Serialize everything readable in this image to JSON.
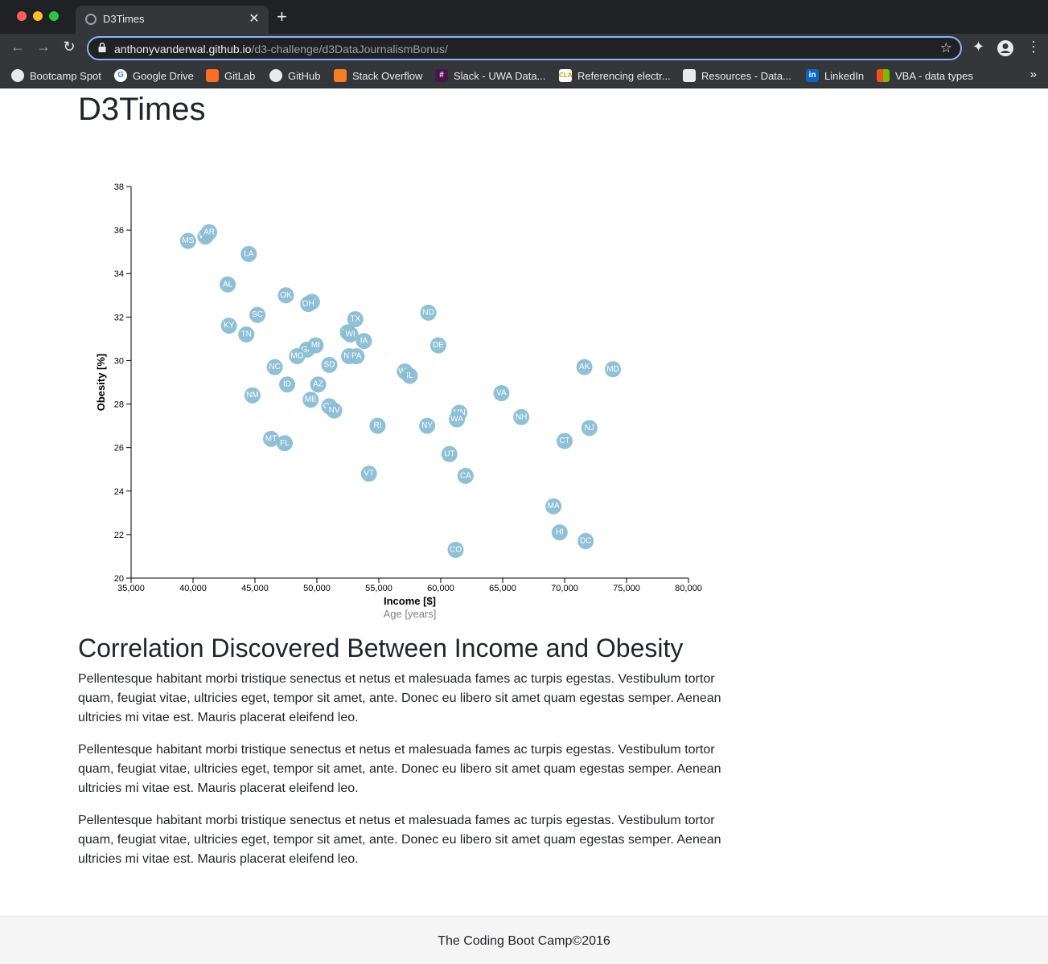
{
  "browser": {
    "tab_title": "D3Times",
    "url_host": "anthonyvanderwal.github.io",
    "url_path": "/d3-challenge/d3DataJournalismBonus/",
    "bookmarks": [
      {
        "label": "Bootcamp Spot",
        "icon": "globe-icon",
        "color": "#e8eaed"
      },
      {
        "label": "Google Drive",
        "icon": "google-icon",
        "color": "#4285f4"
      },
      {
        "label": "GitLab",
        "icon": "gitlab-icon",
        "color": "#fc6d26"
      },
      {
        "label": "GitHub",
        "icon": "github-icon",
        "color": "#e8eaed"
      },
      {
        "label": "Stack Overflow",
        "icon": "stackoverflow-icon",
        "color": "#f48024"
      },
      {
        "label": "Slack - UWA Data...",
        "icon": "slack-icon",
        "color": "#4a154b"
      },
      {
        "label": "Referencing electr...",
        "icon": "cla-icon",
        "color": "#f4b400"
      },
      {
        "label": "Resources - Data...",
        "icon": "book-icon",
        "color": "#e8eaed"
      },
      {
        "label": "LinkedIn",
        "icon": "linkedin-icon",
        "color": "#0a66c2"
      },
      {
        "label": "VBA - data types",
        "icon": "microsoft-icon",
        "color": "#f25022"
      }
    ]
  },
  "page": {
    "title": "D3Times",
    "heading": "Correlation Discovered Between Income and Obesity",
    "paragraphs": [
      "Pellentesque habitant morbi tristique senectus et netus et malesuada fames ac turpis egestas. Vestibulum tortor quam, feugiat vitae, ultricies eget, tempor sit amet, ante. Donec eu libero sit amet quam egestas semper. Aenean ultricies mi vitae est. Mauris placerat eleifend leo.",
      "Pellentesque habitant morbi tristique senectus et netus et malesuada fames ac turpis egestas. Vestibulum tortor quam, feugiat vitae, ultricies eget, tempor sit amet, ante. Donec eu libero sit amet quam egestas semper. Aenean ultricies mi vitae est. Mauris placerat eleifend leo.",
      "Pellentesque habitant morbi tristique senectus et netus et malesuada fames ac turpis egestas. Vestibulum tortor quam, feugiat vitae, ultricies eget, tempor sit amet, ante. Donec eu libero sit amet quam egestas semper. Aenean ultricies mi vitae est. Mauris placerat eleifend leo."
    ],
    "footer": "The Coding Boot Camp©2016"
  },
  "colors": {
    "marker": "#89bdd3",
    "chrome_dark": "#202124",
    "chrome_mid": "#35363a",
    "accent": "#8ab4f8"
  },
  "chart_data": {
    "type": "scatter",
    "xlabel": "Income [$]",
    "xlabel_alt": "Age [years]",
    "ylabel": "Obesity [%]",
    "xlim": [
      35000,
      80000
    ],
    "ylim": [
      20,
      38
    ],
    "x_ticks": [
      35000,
      40000,
      45000,
      50000,
      55000,
      60000,
      65000,
      70000,
      75000,
      80000
    ],
    "x_tick_labels": [
      "35,000",
      "40,000",
      "45,000",
      "50,000",
      "55,000",
      "60,000",
      "65,000",
      "70,000",
      "75,000",
      "80,000"
    ],
    "y_ticks": [
      20,
      22,
      24,
      26,
      28,
      30,
      32,
      34,
      36,
      38
    ],
    "points": [
      {
        "state": "MS",
        "x": 39600,
        "y": 35.5
      },
      {
        "state": "WV",
        "x": 41000,
        "y": 35.7
      },
      {
        "state": "AR",
        "x": 41300,
        "y": 35.9
      },
      {
        "state": "LA",
        "x": 44500,
        "y": 34.9
      },
      {
        "state": "AL",
        "x": 42800,
        "y": 33.5
      },
      {
        "state": "OK",
        "x": 47500,
        "y": 33.0
      },
      {
        "state": "IN",
        "x": 49600,
        "y": 32.7
      },
      {
        "state": "OH",
        "x": 49300,
        "y": 32.6
      },
      {
        "state": "SC",
        "x": 45200,
        "y": 32.1
      },
      {
        "state": "KY",
        "x": 42900,
        "y": 31.6
      },
      {
        "state": "TN",
        "x": 44300,
        "y": 31.2
      },
      {
        "state": "TX",
        "x": 53100,
        "y": 31.9
      },
      {
        "state": "ND",
        "x": 59000,
        "y": 32.2
      },
      {
        "state": "KS",
        "x": 52500,
        "y": 31.3
      },
      {
        "state": "WI",
        "x": 52700,
        "y": 31.2
      },
      {
        "state": "IA",
        "x": 53800,
        "y": 30.9
      },
      {
        "state": "DE",
        "x": 59800,
        "y": 30.7
      },
      {
        "state": "GA",
        "x": 49200,
        "y": 30.5
      },
      {
        "state": "MI",
        "x": 49900,
        "y": 30.7
      },
      {
        "state": "MO",
        "x": 48400,
        "y": 30.2
      },
      {
        "state": "NE",
        "x": 52600,
        "y": 30.2
      },
      {
        "state": "PA",
        "x": 53200,
        "y": 30.2
      },
      {
        "state": "NC",
        "x": 46600,
        "y": 29.7
      },
      {
        "state": "SD",
        "x": 51000,
        "y": 29.8
      },
      {
        "state": "WY",
        "x": 57100,
        "y": 29.5
      },
      {
        "state": "IL",
        "x": 57500,
        "y": 29.3
      },
      {
        "state": "AK",
        "x": 71600,
        "y": 29.7
      },
      {
        "state": "MD",
        "x": 73900,
        "y": 29.6
      },
      {
        "state": "ID",
        "x": 47600,
        "y": 28.9
      },
      {
        "state": "AZ",
        "x": 50100,
        "y": 28.9
      },
      {
        "state": "VA",
        "x": 64900,
        "y": 28.5
      },
      {
        "state": "NM",
        "x": 44800,
        "y": 28.4
      },
      {
        "state": "ME",
        "x": 49500,
        "y": 28.2
      },
      {
        "state": "OR",
        "x": 51000,
        "y": 27.9
      },
      {
        "state": "NV",
        "x": 51400,
        "y": 27.7
      },
      {
        "state": "MN",
        "x": 61500,
        "y": 27.6
      },
      {
        "state": "WA",
        "x": 61300,
        "y": 27.3
      },
      {
        "state": "NH",
        "x": 66500,
        "y": 27.4
      },
      {
        "state": "RI",
        "x": 54900,
        "y": 27.0
      },
      {
        "state": "NY",
        "x": 58900,
        "y": 27.0
      },
      {
        "state": "NJ",
        "x": 72000,
        "y": 26.9
      },
      {
        "state": "MT",
        "x": 46300,
        "y": 26.4
      },
      {
        "state": "FL",
        "x": 47400,
        "y": 26.2
      },
      {
        "state": "CT",
        "x": 70000,
        "y": 26.3
      },
      {
        "state": "UT",
        "x": 60700,
        "y": 25.7
      },
      {
        "state": "VT",
        "x": 54200,
        "y": 24.8
      },
      {
        "state": "CA",
        "x": 62000,
        "y": 24.7
      },
      {
        "state": "MA",
        "x": 69100,
        "y": 23.3
      },
      {
        "state": "HI",
        "x": 69600,
        "y": 22.1
      },
      {
        "state": "DC",
        "x": 71700,
        "y": 21.7
      },
      {
        "state": "CO",
        "x": 61200,
        "y": 21.3
      }
    ]
  }
}
